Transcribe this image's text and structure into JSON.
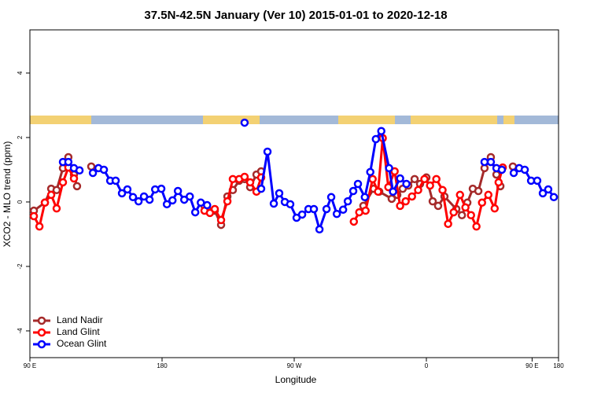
{
  "chart_data": {
    "type": "line",
    "title": "37.5N-42.5N January (Ver 10)   2015-01-01 to 2020-12-18",
    "x_label": "Longitude",
    "y_label": "XCO2 - MLO trend (ppm)",
    "xlim": [
      90,
      450
    ],
    "ylim": [
      -4.83,
      5.34
    ],
    "xticks": [
      {
        "value": 90,
        "label": "90 E"
      },
      {
        "value": 180,
        "label": "180"
      },
      {
        "value": 270,
        "label": "90 W"
      },
      {
        "value": 360,
        "label": "0"
      },
      {
        "value": 450,
        "label": "180"
      }
    ],
    "xticks_extra": [
      {
        "value": 432,
        "label": "90 E"
      }
    ],
    "yticks": [
      -4,
      -2,
      0,
      2,
      4
    ],
    "legend": "bottom-left",
    "series": [
      {
        "name": "Land Nadir",
        "color": "#a52a2a",
        "x": [
          92.7,
          100.2,
          104.5,
          108.2,
          112.5,
          116.2,
          120.0,
          122.1,
          null,
          131.8,
          null,
          208.9,
          211.6,
          215.9,
          220.2,
          224.5,
          228.2,
          232.5,
          236.2,
          240.0,
          244.3,
          247.5,
          null,
          317.1,
          324.1,
          327.9,
          336.4,
          340.2,
          343.9,
          347.7,
          352.0,
          355.7,
          360.0,
          364.3,
          368.0,
          372.3,
          380.4,
          384.2,
          387.9,
          391.6,
          395.4,
          399.6,
          403.9,
          407.7,
          410.4,
          null,
          418.9
        ],
        "values": [
          -0.27,
          -0.02,
          0.41,
          0.37,
          1.05,
          1.39,
          0.85,
          0.49,
          null,
          1.1,
          null,
          -0.12,
          -0.27,
          -0.27,
          -0.71,
          0.17,
          0.37,
          0.66,
          0.71,
          0.46,
          0.85,
          0.95,
          null,
          -0.12,
          0.41,
          0.32,
          0.1,
          0.22,
          0.41,
          0.51,
          0.71,
          0.56,
          0.76,
          0.02,
          -0.12,
          0.17,
          -0.22,
          -0.41,
          -0.02,
          0.41,
          0.34,
          1.05,
          1.39,
          0.85,
          0.49,
          null,
          1.1
        ]
      },
      {
        "name": "Land Glint",
        "color": "#ff0000",
        "x": [
          92.7,
          96.5,
          100.2,
          104.5,
          108.2,
          112.5,
          116.2,
          120.0,
          null,
          208.9,
          212.6,
          215.9,
          220.2,
          224.5,
          228.2,
          232.5,
          236.2,
          240.0,
          244.3,
          247.5,
          null,
          310.6,
          314.3,
          318.6,
          323.4,
          327.1,
          330.3,
          334.1,
          338.4,
          342.1,
          345.9,
          350.2,
          354.4,
          358.7,
          362.5,
          366.8,
          371.0,
          374.8,
          378.6,
          382.9,
          386.6,
          390.4,
          394.1,
          397.9,
          402.2,
          406.5,
          409.2,
          412.0
        ],
        "values": [
          -0.44,
          -0.76,
          -0.02,
          0.22,
          -0.2,
          0.61,
          1.07,
          0.73,
          null,
          -0.27,
          -0.34,
          -0.22,
          -0.56,
          0.02,
          0.71,
          0.71,
          0.78,
          0.61,
          0.32,
          0.76,
          null,
          -0.61,
          -0.32,
          -0.27,
          0.71,
          0.32,
          1.98,
          0.46,
          0.95,
          -0.12,
          0.02,
          0.17,
          0.37,
          0.71,
          0.51,
          0.71,
          0.37,
          -0.68,
          -0.32,
          0.22,
          -0.17,
          -0.41,
          -0.76,
          -0.02,
          0.22,
          -0.2,
          0.61,
          1.07
        ]
      },
      {
        "name": "Ocean Glint",
        "color": "#0000ff",
        "x": [
          112.5,
          116.2,
          120.0,
          123.8,
          null,
          132.9,
          136.7,
          140.4,
          144.7,
          148.4,
          152.7,
          156.4,
          160.2,
          164.0,
          167.7,
          171.5,
          175.3,
          179.5,
          183.3,
          187.1,
          190.8,
          195.1,
          198.9,
          202.6,
          206.4,
          210.7,
          null,
          236.2,
          null,
          247.5,
          251.8,
          256.1,
          259.8,
          263.6,
          267.3,
          271.6,
          275.4,
          279.7,
          283.4,
          287.2,
          292.0,
          295.2,
          299.0,
          303.3,
          306.5,
          310.2,
          313.4,
          318.1,
          321.8,
          325.6,
          329.3,
          334.6,
          337.3,
          342.1,
          346.4,
          null,
          399.6,
          403.9,
          407.7,
          411.4,
          null,
          419.5,
          423.2,
          427.0,
          431.3,
          435.5,
          439.3,
          443.0,
          446.8
        ],
        "values": [
          1.24,
          1.24,
          1.05,
          0.98,
          null,
          0.9,
          1.05,
          1.0,
          0.66,
          0.66,
          0.27,
          0.39,
          0.15,
          0.02,
          0.17,
          0.07,
          0.39,
          0.41,
          -0.07,
          0.05,
          0.34,
          0.07,
          0.17,
          -0.32,
          -0.02,
          -0.1,
          null,
          2.46,
          null,
          0.41,
          1.56,
          -0.05,
          0.27,
          0.0,
          -0.07,
          -0.49,
          -0.39,
          -0.22,
          -0.22,
          -0.85,
          -0.22,
          0.15,
          -0.37,
          -0.24,
          0.02,
          0.34,
          0.56,
          0.15,
          0.93,
          1.95,
          2.2,
          1.05,
          0.32,
          0.73,
          0.56,
          null,
          1.24,
          1.24,
          1.05,
          1.0,
          null,
          0.9,
          1.05,
          1.0,
          0.66,
          0.66,
          0.27,
          0.39,
          0.15
        ]
      }
    ]
  }
}
